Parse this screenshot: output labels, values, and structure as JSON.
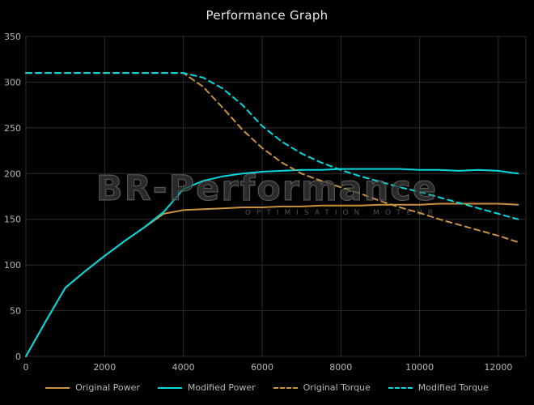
{
  "title": "Performance Graph",
  "watermark": {
    "brand": "BR-Performance",
    "tagline": "OPTIMISATION MOTEUR"
  },
  "colors": {
    "background": "#000000",
    "grid": "#2d2d2d",
    "axis_text": "#b5b5b5",
    "title_text": "#e8e8e8",
    "orange": "#c8923f",
    "cyan": "#00d9e0"
  },
  "chart_data": {
    "type": "line",
    "title": "Performance Graph",
    "xlabel": "",
    "ylabel": "",
    "xlim": [
      0,
      12700
    ],
    "ylim": [
      0,
      350
    ],
    "ytick_step": 50,
    "xticks": [
      0,
      2000,
      4000,
      6000,
      8000,
      10000,
      12000
    ],
    "grid": true,
    "legend_position": "bottom",
    "x": [
      0,
      500,
      1000,
      1500,
      2000,
      2500,
      3000,
      3500,
      4000,
      4500,
      5000,
      5500,
      6000,
      6500,
      7000,
      7500,
      8000,
      8500,
      9000,
      9500,
      10000,
      10500,
      11000,
      11500,
      12000,
      12500
    ],
    "series": [
      {
        "name": "Original Power",
        "color": "#c8923f",
        "dash": false,
        "values": [
          0,
          38,
          75,
          93,
          110,
          126,
          141,
          156,
          160,
          161,
          162,
          163,
          163,
          164,
          164,
          165,
          165,
          165,
          166,
          166,
          166,
          167,
          167,
          167,
          167,
          166
        ]
      },
      {
        "name": "Modified Power",
        "color": "#00d9e0",
        "dash": false,
        "values": [
          0,
          38,
          75,
          93,
          110,
          126,
          141,
          158,
          183,
          192,
          197,
          200,
          202,
          203,
          204,
          204,
          205,
          205,
          205,
          205,
          204,
          204,
          203,
          204,
          203,
          200
        ]
      },
      {
        "name": "Original Torque",
        "color": "#c8923f",
        "dash": true,
        "values": [
          310,
          310,
          310,
          310,
          310,
          310,
          310,
          310,
          310,
          295,
          272,
          248,
          228,
          212,
          200,
          192,
          185,
          178,
          170,
          163,
          157,
          150,
          144,
          138,
          132,
          125
        ]
      },
      {
        "name": "Modified Torque",
        "color": "#00d9e0",
        "dash": true,
        "values": [
          310,
          310,
          310,
          310,
          310,
          310,
          310,
          310,
          310,
          305,
          293,
          275,
          252,
          235,
          222,
          212,
          204,
          197,
          191,
          185,
          180,
          174,
          168,
          162,
          156,
          150
        ]
      }
    ]
  }
}
